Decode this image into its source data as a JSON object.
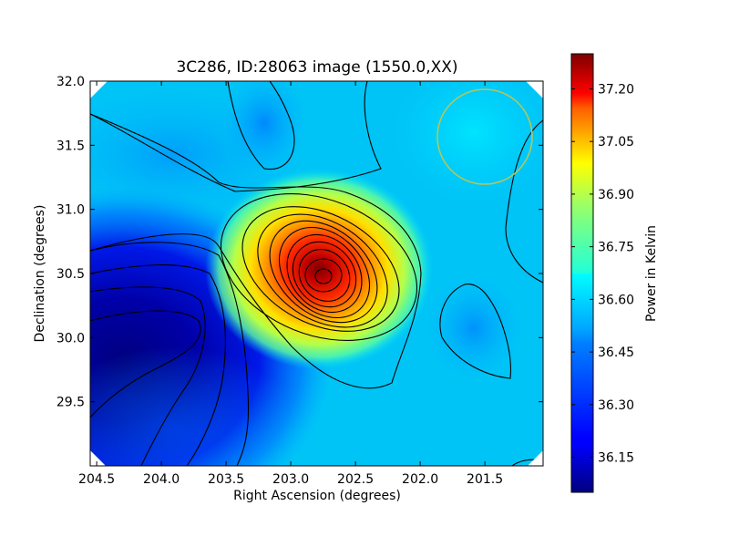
{
  "chart_data": {
    "type": "heatmap",
    "title": "3C286, ID:28063 image (1550.0,XX)",
    "xlabel": "Right Ascension (degrees)",
    "ylabel": "Declination (degrees)",
    "x_inverted": true,
    "xlim": [
      204.55,
      201.05
    ],
    "ylim": [
      29.0,
      32.0
    ],
    "x_ticks": [
      "204.5",
      "204.0",
      "203.5",
      "203.0",
      "202.5",
      "202.0",
      "201.5"
    ],
    "x_tick_values": [
      204.5,
      204.0,
      203.5,
      203.0,
      202.5,
      202.0,
      201.5
    ],
    "y_ticks": [
      "32.0",
      "31.5",
      "31.0",
      "30.5",
      "30.0",
      "29.5"
    ],
    "y_tick_values": [
      32.0,
      31.5,
      31.0,
      30.5,
      30.0,
      29.5
    ],
    "colorbar": {
      "label": "Power in Kelvin",
      "colormap": "jet",
      "range": [
        36.05,
        37.3
      ],
      "ticks": [
        "37.20",
        "37.05",
        "36.90",
        "36.75",
        "36.60",
        "36.45",
        "36.30",
        "36.15"
      ],
      "tick_values": [
        37.2,
        37.05,
        36.9,
        36.75,
        36.6,
        36.45,
        36.3,
        36.15
      ]
    },
    "peak": {
      "ra": 202.75,
      "dec": 30.48,
      "value": 37.28
    },
    "minimum_region": {
      "ra": 204.4,
      "dec": 29.85,
      "value": 36.06
    },
    "beam_circle": {
      "ra": 201.5,
      "dec": 31.57,
      "color": "#b5c65a"
    },
    "grid": false
  }
}
